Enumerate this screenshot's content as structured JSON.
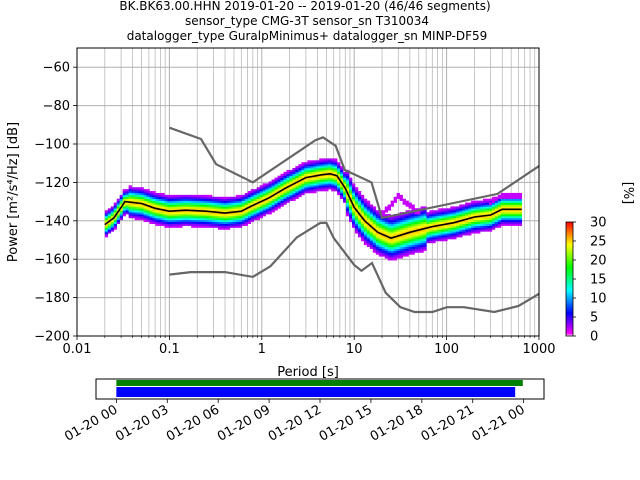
{
  "chart_data": [
    {
      "type": "heatmap",
      "title_lines": [
        "BK.BK63.00.HHN   2019-01-20 -- 2019-01-20  (46/46 segments)",
        "sensor_type CMG-3T sensor_sn T310034",
        "datalogger_type GuralpMinimus+ datalogger_sn MINP-DF59"
      ],
      "xlabel": "Period [s]",
      "ylabel": "Power [m²/s⁴/Hz] [dB]",
      "x_scale": "log",
      "xlim": [
        0.01,
        1000
      ],
      "ylim": [
        -200,
        -50
      ],
      "x_ticks": [
        0.01,
        0.1,
        1,
        10,
        100,
        1000
      ],
      "x_tick_labels": [
        "0.01",
        "0.1",
        "1",
        "10",
        "100",
        "1000"
      ],
      "y_ticks": [
        -200,
        -180,
        -160,
        -140,
        -120,
        -100,
        -80,
        -60
      ],
      "y_tick_labels": [
        "−200",
        "−180",
        "−160",
        "−140",
        "−120",
        "−100",
        "−80",
        "−60"
      ],
      "grid": true,
      "colorbar": {
        "label": "[%]",
        "range": [
          0,
          30
        ],
        "ticks": [
          0,
          5,
          10,
          15,
          20,
          25,
          30
        ],
        "tick_labels": [
          "0",
          "5",
          "10",
          "15",
          "20",
          "25",
          "30"
        ],
        "colormap": [
          "#ffffff",
          "#ff00ff",
          "#0000ff",
          "#00ffff",
          "#00ff00",
          "#ffff00",
          "#ff0000"
        ]
      },
      "colors": {
        "noise_models": "#666666",
        "mean_psd": "#000000"
      },
      "noise_model_high": [
        [
          0.1,
          -91.5
        ],
        [
          0.22,
          -97.4
        ],
        [
          0.32,
          -110.5
        ],
        [
          0.8,
          -120
        ],
        [
          3.8,
          -98
        ],
        [
          4.6,
          -96.5
        ],
        [
          6.3,
          -101
        ],
        [
          7.9,
          -113.5
        ],
        [
          15.4,
          -120
        ],
        [
          20,
          -138.5
        ],
        [
          354.8,
          -126
        ],
        [
          1000,
          -111.5
        ]
      ],
      "noise_model_low": [
        [
          0.1,
          -168
        ],
        [
          0.17,
          -166.7
        ],
        [
          0.4,
          -166.7
        ],
        [
          0.8,
          -169.2
        ],
        [
          1.24,
          -163.7
        ],
        [
          2.4,
          -148.6
        ],
        [
          4.3,
          -141.1
        ],
        [
          5,
          -141.1
        ],
        [
          6,
          -149
        ],
        [
          10,
          -163
        ],
        [
          12,
          -166
        ],
        [
          15.6,
          -162
        ],
        [
          21.9,
          -177.5
        ],
        [
          31.6,
          -185
        ],
        [
          45,
          -187.5
        ],
        [
          70,
          -187.5
        ],
        [
          101,
          -185
        ],
        [
          154,
          -185
        ],
        [
          328,
          -187.5
        ],
        [
          600,
          -184.4
        ],
        [
          1000,
          -178
        ]
      ],
      "mean_psd": [
        [
          0.02,
          -142
        ],
        [
          0.025,
          -138.5
        ],
        [
          0.03,
          -133
        ],
        [
          0.033,
          -130
        ],
        [
          0.05,
          -131
        ],
        [
          0.07,
          -133.5
        ],
        [
          0.1,
          -135
        ],
        [
          0.15,
          -134.5
        ],
        [
          0.25,
          -135
        ],
        [
          0.4,
          -136
        ],
        [
          0.6,
          -135
        ],
        [
          0.8,
          -132
        ],
        [
          1.2,
          -128
        ],
        [
          1.8,
          -123
        ],
        [
          3,
          -117.5
        ],
        [
          4.5,
          -116
        ],
        [
          5.5,
          -115.5
        ],
        [
          6.5,
          -116.5
        ],
        [
          8,
          -123
        ],
        [
          10,
          -133
        ],
        [
          13,
          -140
        ],
        [
          18,
          -146
        ],
        [
          25,
          -149
        ],
        [
          40,
          -146
        ],
        [
          70,
          -143
        ],
        [
          120,
          -141
        ],
        [
          200,
          -138
        ],
        [
          300,
          -137
        ],
        [
          400,
          -134
        ],
        [
          650,
          -134
        ]
      ],
      "magenta_secondary": [
        [
          20,
          -137
        ],
        [
          30,
          -127
        ],
        [
          60,
          -139
        ],
        [
          120,
          -145
        ],
        [
          200,
          -138
        ],
        [
          400,
          -127
        ],
        [
          650,
          -127
        ]
      ],
      "time_axis": {
        "tick_labels": [
          "01-20 00",
          "01-20 03",
          "01-20 06",
          "01-20 09",
          "01-20 12",
          "01-20 15",
          "01-20 18",
          "01-20 21",
          "01-21 00"
        ],
        "tick_hours": [
          0,
          3,
          6,
          9,
          12,
          15,
          18,
          21,
          24
        ],
        "xlim_hours": [
          -1.2,
          25.2
        ],
        "coverage_hours": [
          0,
          23.95
        ],
        "psd_segments_hours": [
          0,
          23.5
        ],
        "coverage_color": "#008000",
        "segments_color": "#0000ff"
      }
    }
  ]
}
